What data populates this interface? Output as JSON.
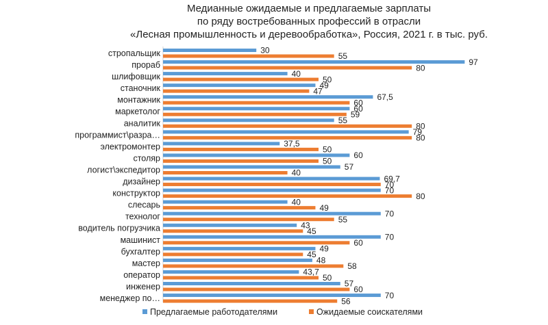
{
  "chart_data": {
    "type": "bar",
    "orientation": "horizontal",
    "title_lines": [
      "Медианные ожидаемые и предлагаемые зарплаты",
      "по ряду востребованных профессий в отрасли",
      "«Лесная промышленность и деревообработка», Россия, 2021 г. в тыс. руб."
    ],
    "categories": [
      "стропальщик",
      "прораб",
      "шлифовщик",
      "станочник",
      "монтажник",
      "маркетолог",
      "аналитик",
      "программист\\разра…",
      "электромонтер",
      "столяр",
      "логист\\экспедитор",
      "дизайнер",
      "конструктор",
      "слесарь",
      "технолог",
      "водитель погрузчика",
      "машинист",
      "бухгалтер",
      "мастер",
      "оператор",
      "инженер",
      "менеджер по…"
    ],
    "series": [
      {
        "name": "Предлагаемые работодателями",
        "color": "#5B9BD5",
        "values": [
          30,
          97,
          40,
          49,
          67.5,
          60,
          55,
          79,
          37.5,
          60,
          57,
          69.7,
          70,
          40,
          70,
          43,
          70,
          49,
          48,
          43.7,
          57,
          70
        ],
        "labels": [
          "30",
          "97",
          "40",
          "49",
          "67,5",
          "60",
          "55",
          "79",
          "37,5",
          "60",
          "57",
          "69,7",
          "70",
          "40",
          "70",
          "43",
          "70",
          "49",
          "48",
          "43,7",
          "57",
          "70"
        ]
      },
      {
        "name": "Ожидаемые соискателями",
        "color": "#ED7D31",
        "values": [
          55,
          80,
          50,
          47,
          60,
          59,
          80,
          80,
          50,
          50,
          40,
          70,
          80,
          49,
          55,
          45,
          60,
          45,
          58,
          50,
          60,
          56
        ],
        "labels": [
          "55",
          "80",
          "50",
          "47",
          "60",
          "59",
          "80",
          "80",
          "50",
          "50",
          "40",
          "70",
          "80",
          "49",
          "55",
          "45",
          "60",
          "45",
          "58",
          "50",
          "60",
          "56"
        ]
      }
    ],
    "xlim": [
      0,
      100
    ],
    "grid": false,
    "legend_position": "bottom"
  }
}
